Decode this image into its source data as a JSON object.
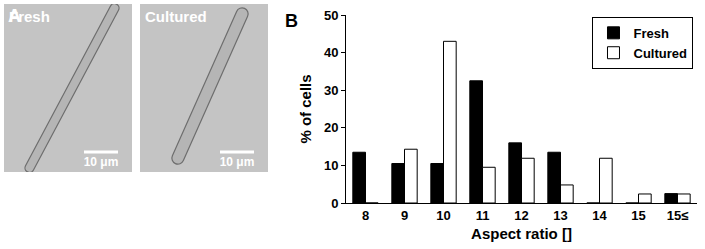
{
  "panel_a": {
    "label": "A",
    "images": [
      {
        "title": "Fresh",
        "scale_bar": "10 μm"
      },
      {
        "title": "Cultured",
        "scale_bar": "10 μm"
      }
    ]
  },
  "chart_data": {
    "type": "bar",
    "annotations": [
      "B"
    ],
    "x_label": "Aspect ratio []",
    "y_label": "% of cells",
    "categories": [
      "8",
      "9",
      "10",
      "11",
      "12",
      "13",
      "14",
      "15",
      "15≤"
    ],
    "series": [
      {
        "name": "Fresh",
        "color": "#000000",
        "values": [
          13.5,
          10.5,
          10.5,
          32.5,
          16,
          13.5,
          0,
          0,
          2.5
        ]
      },
      {
        "name": "Cultured",
        "color": "#ffffff",
        "values": [
          0,
          14.3,
          43,
          9.5,
          11.9,
          4.8,
          11.9,
          2.4,
          2.4
        ]
      }
    ],
    "ylim": [
      0,
      50
    ],
    "yticks": [
      0,
      10,
      20,
      30,
      40,
      50
    ],
    "grid": false,
    "legend": "upper right"
  }
}
